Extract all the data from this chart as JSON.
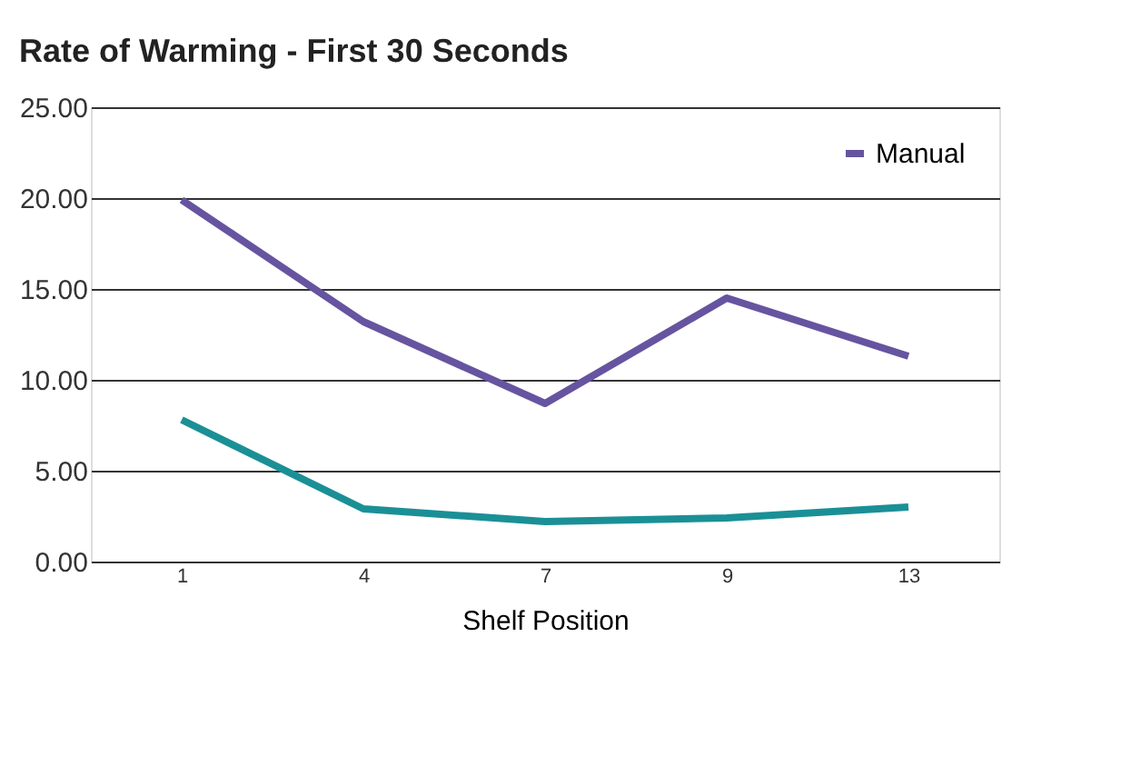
{
  "chart_data": {
    "type": "line",
    "title": "Rate of Warming - First 30 Seconds",
    "xlabel": "Shelf Position",
    "categories": [
      "1",
      "4",
      "7",
      "9",
      "13"
    ],
    "series": [
      {
        "name": "Manual",
        "color": "#6654a0",
        "values": [
          19.9,
          13.2,
          8.7,
          14.5,
          11.3
        ]
      },
      {
        "color": "#1a9096",
        "values": [
          7.8,
          2.9,
          2.2,
          2.4,
          3.0
        ]
      }
    ],
    "ylim": [
      0,
      25
    ],
    "yticks": [
      {
        "value": 0,
        "label": "0.00"
      },
      {
        "value": 5,
        "label": "5.00"
      },
      {
        "value": 10,
        "label": "10.00"
      },
      {
        "value": 15,
        "label": "15.00"
      },
      {
        "value": 20,
        "label": "20.00"
      },
      {
        "value": 25,
        "label": "25.00"
      }
    ],
    "grid": "y",
    "legend": "top right",
    "line_style": "solid",
    "marker": "none"
  }
}
